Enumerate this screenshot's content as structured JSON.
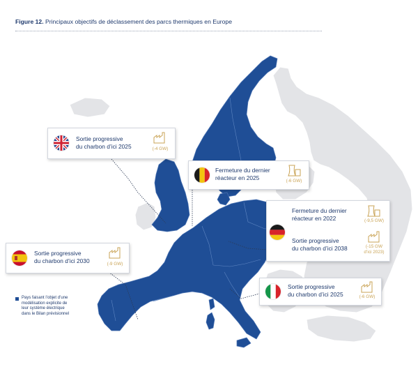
{
  "figure": {
    "number": "Figure 12.",
    "title": "Principaux objectifs de déclassement des parcs thermiques en Europe"
  },
  "colors": {
    "modelled_country": "#1f4e96",
    "other_country": "#e3e4e7",
    "capacity_text": "#c9a355",
    "text": "#1f3a6d"
  },
  "callouts": {
    "uk": {
      "flag": "united-kingdom-flag",
      "line1": "Sortie progressive",
      "line2": "du charbon d’ici 2025",
      "capacity": "(-4 GW)"
    },
    "belgium": {
      "flag": "belgium-flag",
      "line1": "Fermeture du dernier",
      "line2": "réacteur en 2025",
      "capacity": "(-6 GW)"
    },
    "germany": {
      "flag": "germany-flag",
      "nuclear_line1": "Fermeture du dernier",
      "nuclear_line2": "réacteur en 2022",
      "nuclear_capacity": "(-9,5 GW)",
      "coal_line1": "Sortie progressive",
      "coal_line2": "du charbon d’ici 2038",
      "coal_capacity_line1": "(-15 GW",
      "coal_capacity_line2": "d’ici 2023)"
    },
    "spain": {
      "flag": "spain-flag",
      "line1": "Sortie progressive",
      "line2": "du charbon d’ici 2030",
      "capacity": "(-9 GW)"
    },
    "italy": {
      "flag": "italy-flag",
      "line1": "Sortie progressive",
      "line2": "du charbon d’ici 2025",
      "capacity": "(-6 GW)"
    }
  },
  "legend": {
    "line1": "Pays faisant l’objet d’une",
    "line2": "modélisation explicite de",
    "line3": "leur système électrique",
    "line4": "dans le Bilan prévisionnel"
  }
}
